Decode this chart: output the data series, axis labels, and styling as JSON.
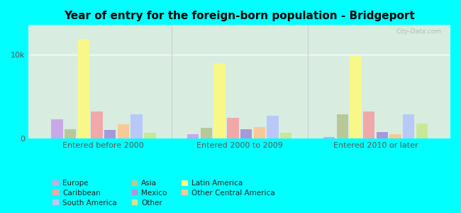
{
  "title": "Year of entry for the foreign-born population - Bridgeport",
  "groups": [
    "Entered before 2000",
    "Entered 2000 to 2009",
    "Entered 2010 or later"
  ],
  "categories": [
    "Europe",
    "Asia",
    "Latin America",
    "Caribbean",
    "Mexico",
    "Other Central America",
    "South America",
    "Other"
  ],
  "colors": {
    "Europe": "#c8a8e8",
    "Asia": "#b8c898",
    "Latin America": "#f8f888",
    "Caribbean": "#f0a8a8",
    "Mexico": "#a898d8",
    "Other Central America": "#f8c898",
    "South America": "#b8c8f8",
    "Other": "#c8e898"
  },
  "values": {
    "Entered before 2000": {
      "Europe": 2300,
      "Asia": 1100,
      "Latin America": 11800,
      "Caribbean": 3200,
      "Mexico": 1000,
      "Other Central America": 1700,
      "South America": 2900,
      "Other": 700
    },
    "Entered 2000 to 2009": {
      "Europe": 500,
      "Asia": 1300,
      "Latin America": 9000,
      "Caribbean": 2500,
      "Mexico": 1100,
      "Other Central America": 1400,
      "South America": 2700,
      "Other": 700
    },
    "Entered 2010 or later": {
      "Europe": 200,
      "Asia": 2900,
      "Latin America": 9800,
      "Caribbean": 3200,
      "Mexico": 800,
      "Other Central America": 500,
      "South America": 2900,
      "Other": 1800
    }
  },
  "ylim": [
    0,
    13500
  ],
  "yticks": [
    0,
    10000
  ],
  "ytick_labels": [
    "0",
    "10k"
  ],
  "background_color": "#00ffff",
  "plot_bg_color": "#d8ede0",
  "watermark": "City-Data.com",
  "legend_order": [
    [
      "Europe",
      "#c8a8e8"
    ],
    [
      "Caribbean",
      "#f0a8a8"
    ],
    [
      "South America",
      "#b8c8f8"
    ],
    [
      "Asia",
      "#b8c898"
    ],
    [
      "Mexico",
      "#a898d8"
    ],
    [
      "Other",
      "#c8e898"
    ],
    [
      "Latin America",
      "#f8f888"
    ],
    [
      "Other Central America",
      "#f8c898"
    ]
  ]
}
